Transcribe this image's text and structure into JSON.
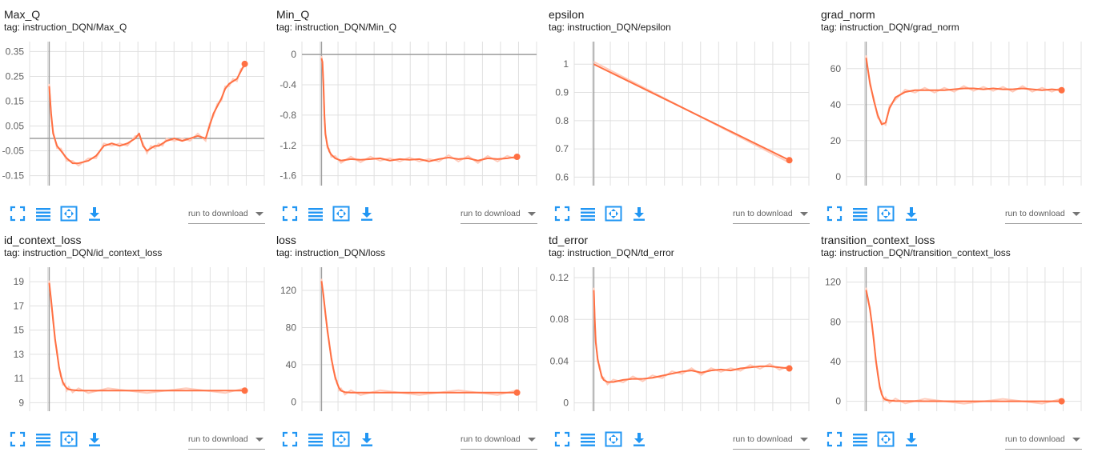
{
  "colors": {
    "series": "#ff7043",
    "series_raw": "#ffccbc",
    "grid": "#e0e0e0",
    "axis": "#9e9e9e",
    "tick_text": "#616161",
    "icon": "#2196f3"
  },
  "toolbar": {
    "icons": [
      "expand-icon",
      "list-icon",
      "fit-domain-icon",
      "download-icon"
    ],
    "run_to_download": "run to download"
  },
  "charts": [
    {
      "title": "Max_Q",
      "tag": "tag: instruction_DQN/Max_Q"
    },
    {
      "title": "Min_Q",
      "tag": "tag: instruction_DQN/Min_Q"
    },
    {
      "title": "epsilon",
      "tag": "tag: instruction_DQN/epsilon"
    },
    {
      "title": "grad_norm",
      "tag": "tag: instruction_DQN/grad_norm"
    },
    {
      "title": "id_context_loss",
      "tag": "tag: instruction_DQN/id_context_loss"
    },
    {
      "title": "loss",
      "tag": "tag: instruction_DQN/loss"
    },
    {
      "title": "td_error",
      "tag": "tag: instruction_DQN/td_error"
    },
    {
      "title": "transition_context_loss",
      "tag": "tag: instruction_DQN/transition_context_loss"
    }
  ],
  "chart_data": [
    {
      "type": "line",
      "title": "Max_Q",
      "ylim": [
        -0.19,
        0.39
      ],
      "xlim": [
        -0.1,
        1.1
      ],
      "yticks": [
        -0.15,
        -0.05,
        0.05,
        0.15,
        0.25,
        0.35
      ],
      "ytick_labels": [
        "-0.15",
        "-0.05",
        "0.05",
        "0.15",
        "0.25",
        "0.35"
      ],
      "zero_line": true,
      "grid": true,
      "x": [
        0,
        0.01,
        0.02,
        0.04,
        0.06,
        0.09,
        0.12,
        0.15,
        0.2,
        0.24,
        0.28,
        0.32,
        0.36,
        0.4,
        0.44,
        0.46,
        0.48,
        0.5,
        0.52,
        0.54,
        0.56,
        0.58,
        0.6,
        0.64,
        0.68,
        0.72,
        0.76,
        0.8,
        0.82,
        0.84,
        0.86,
        0.88,
        0.9,
        0.92,
        0.94,
        0.96,
        0.98,
        1.0
      ],
      "values": [
        0.21,
        0.1,
        0.02,
        -0.03,
        -0.05,
        -0.08,
        -0.1,
        -0.1,
        -0.09,
        -0.07,
        -0.03,
        -0.02,
        -0.03,
        -0.02,
        0.0,
        0.02,
        -0.03,
        -0.05,
        -0.04,
        -0.03,
        -0.03,
        -0.02,
        -0.01,
        0.0,
        -0.01,
        0.0,
        0.01,
        0.0,
        0.05,
        0.1,
        0.13,
        0.16,
        0.2,
        0.22,
        0.23,
        0.24,
        0.27,
        0.3
      ]
    },
    {
      "type": "line",
      "title": "Min_Q",
      "ylim": [
        -1.73,
        0.17
      ],
      "xlim": [
        -0.1,
        1.1
      ],
      "yticks": [
        0,
        -0.4,
        -0.8,
        -1.2,
        -1.6
      ],
      "ytick_labels": [
        "0",
        "-0.4",
        "-0.8",
        "-1.2",
        "-1.6"
      ],
      "zero_line": true,
      "grid": true,
      "x": [
        0,
        0.005,
        0.01,
        0.015,
        0.02,
        0.03,
        0.04,
        0.05,
        0.07,
        0.1,
        0.15,
        0.2,
        0.25,
        0.3,
        0.35,
        0.4,
        0.45,
        0.5,
        0.55,
        0.6,
        0.65,
        0.7,
        0.75,
        0.8,
        0.85,
        0.9,
        0.95,
        1.0
      ],
      "values": [
        -0.05,
        -0.1,
        -0.4,
        -0.8,
        -1.05,
        -1.2,
        -1.28,
        -1.32,
        -1.37,
        -1.4,
        -1.38,
        -1.39,
        -1.38,
        -1.37,
        -1.4,
        -1.38,
        -1.39,
        -1.38,
        -1.41,
        -1.38,
        -1.36,
        -1.38,
        -1.37,
        -1.4,
        -1.37,
        -1.38,
        -1.37,
        -1.35
      ]
    },
    {
      "type": "line",
      "title": "epsilon",
      "ylim": [
        0.57,
        1.08
      ],
      "xlim": [
        -0.1,
        1.1
      ],
      "yticks": [
        1,
        0.9,
        0.8,
        0.7,
        0.6
      ],
      "ytick_labels": [
        "1",
        "0.9",
        "0.8",
        "0.7",
        "0.6"
      ],
      "zero_line": false,
      "grid": true,
      "x": [
        0,
        1.0
      ],
      "values": [
        1.0,
        0.66
      ]
    },
    {
      "type": "line",
      "title": "grad_norm",
      "ylim": [
        -5,
        75
      ],
      "xlim": [
        -0.1,
        1.1
      ],
      "yticks": [
        0,
        20,
        40,
        60
      ],
      "ytick_labels": [
        "0",
        "20",
        "40",
        "60"
      ],
      "zero_line": false,
      "grid": true,
      "x": [
        0,
        0.02,
        0.04,
        0.06,
        0.08,
        0.1,
        0.12,
        0.15,
        0.2,
        0.25,
        0.3,
        0.35,
        0.4,
        0.45,
        0.5,
        0.55,
        0.6,
        0.65,
        0.7,
        0.75,
        0.8,
        0.85,
        0.9,
        0.95,
        1.0
      ],
      "values": [
        66,
        52,
        42,
        34,
        29,
        30,
        38,
        44,
        47,
        48,
        48,
        48,
        48,
        48.5,
        49,
        49,
        48.5,
        49,
        48.5,
        48.5,
        49,
        48.5,
        48,
        48.5,
        48
      ]
    },
    {
      "type": "line",
      "title": "id_context_loss",
      "ylim": [
        8.3,
        20.2
      ],
      "xlim": [
        -0.1,
        1.1
      ],
      "yticks": [
        9,
        11,
        13,
        15,
        17,
        19
      ],
      "ytick_labels": [
        "9",
        "11",
        "13",
        "15",
        "17",
        "19"
      ],
      "zero_line": false,
      "grid": true,
      "x": [
        0,
        0.01,
        0.02,
        0.03,
        0.04,
        0.05,
        0.06,
        0.07,
        0.08,
        0.09,
        0.1,
        0.12,
        0.15,
        0.2,
        0.3,
        0.5,
        0.7,
        0.9,
        1.0
      ],
      "values": [
        18.9,
        17.5,
        15.8,
        14.3,
        13.1,
        12.0,
        11.2,
        10.7,
        10.4,
        10.2,
        10.1,
        10.05,
        10.0,
        10.0,
        10.0,
        10.0,
        10.0,
        10.0,
        10.0
      ]
    },
    {
      "type": "line",
      "title": "loss",
      "ylim": [
        -10,
        145
      ],
      "xlim": [
        -0.1,
        1.1
      ],
      "yticks": [
        0,
        40,
        80,
        120
      ],
      "ytick_labels": [
        "0",
        "40",
        "80",
        "120"
      ],
      "zero_line": false,
      "grid": true,
      "x": [
        0,
        0.01,
        0.02,
        0.03,
        0.04,
        0.05,
        0.06,
        0.07,
        0.08,
        0.09,
        0.1,
        0.12,
        0.15,
        0.2,
        0.3,
        0.5,
        0.7,
        0.9,
        1.0
      ],
      "values": [
        130,
        115,
        95,
        78,
        62,
        48,
        36,
        27,
        20,
        15,
        12,
        10.5,
        10,
        10,
        10,
        10,
        10,
        10,
        10
      ]
    },
    {
      "type": "line",
      "title": "td_error",
      "ylim": [
        -0.008,
        0.13
      ],
      "xlim": [
        -0.1,
        1.1
      ],
      "yticks": [
        0,
        0.04,
        0.08,
        0.12
      ],
      "ytick_labels": [
        "0",
        "0.04",
        "0.08",
        "0.12"
      ],
      "zero_line": false,
      "grid": true,
      "x": [
        0,
        0.005,
        0.01,
        0.02,
        0.03,
        0.04,
        0.05,
        0.07,
        0.1,
        0.15,
        0.2,
        0.25,
        0.3,
        0.35,
        0.4,
        0.45,
        0.5,
        0.55,
        0.6,
        0.65,
        0.7,
        0.75,
        0.8,
        0.85,
        0.9,
        0.95,
        1.0
      ],
      "values": [
        0.108,
        0.08,
        0.058,
        0.042,
        0.033,
        0.026,
        0.022,
        0.02,
        0.02,
        0.022,
        0.023,
        0.023,
        0.024,
        0.026,
        0.028,
        0.03,
        0.031,
        0.029,
        0.031,
        0.032,
        0.031,
        0.033,
        0.034,
        0.035,
        0.035,
        0.034,
        0.033
      ]
    },
    {
      "type": "line",
      "title": "transition_context_loss",
      "ylim": [
        -10,
        135
      ],
      "xlim": [
        -0.1,
        1.1
      ],
      "yticks": [
        0,
        40,
        80,
        120
      ],
      "ytick_labels": [
        "0",
        "40",
        "80",
        "120"
      ],
      "zero_line": false,
      "grid": true,
      "x": [
        0,
        0.01,
        0.02,
        0.03,
        0.04,
        0.05,
        0.06,
        0.07,
        0.08,
        0.09,
        0.1,
        0.12,
        0.15,
        0.2,
        0.3,
        0.5,
        0.7,
        0.9,
        1.0
      ],
      "values": [
        112,
        103,
        92,
        78,
        60,
        42,
        27,
        15,
        7,
        3,
        1.5,
        0.8,
        0.3,
        0.2,
        0.1,
        0,
        0,
        0,
        0
      ]
    }
  ]
}
